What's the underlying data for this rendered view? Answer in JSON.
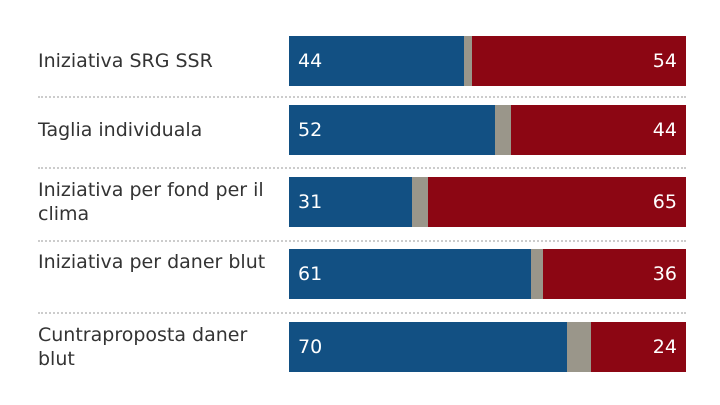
{
  "chart_data": {
    "type": "bar",
    "orientation": "horizontal",
    "stacked": true,
    "categories": [
      "Iniziativa SRG SSR",
      "Taglia individuala",
      "Iniziativa per fond per il clima",
      "Iniziativa per daner blut",
      "Cuntraproposta daner blut"
    ],
    "series": [
      {
        "values": [
          44,
          52,
          31,
          61,
          70
        ],
        "color": "#125083"
      },
      {
        "values": [
          54,
          44,
          65,
          36,
          24
        ],
        "color": "#8c0613"
      }
    ],
    "remainder_color": "#9a968a",
    "xlim": [
      0,
      100
    ],
    "grid": false
  }
}
